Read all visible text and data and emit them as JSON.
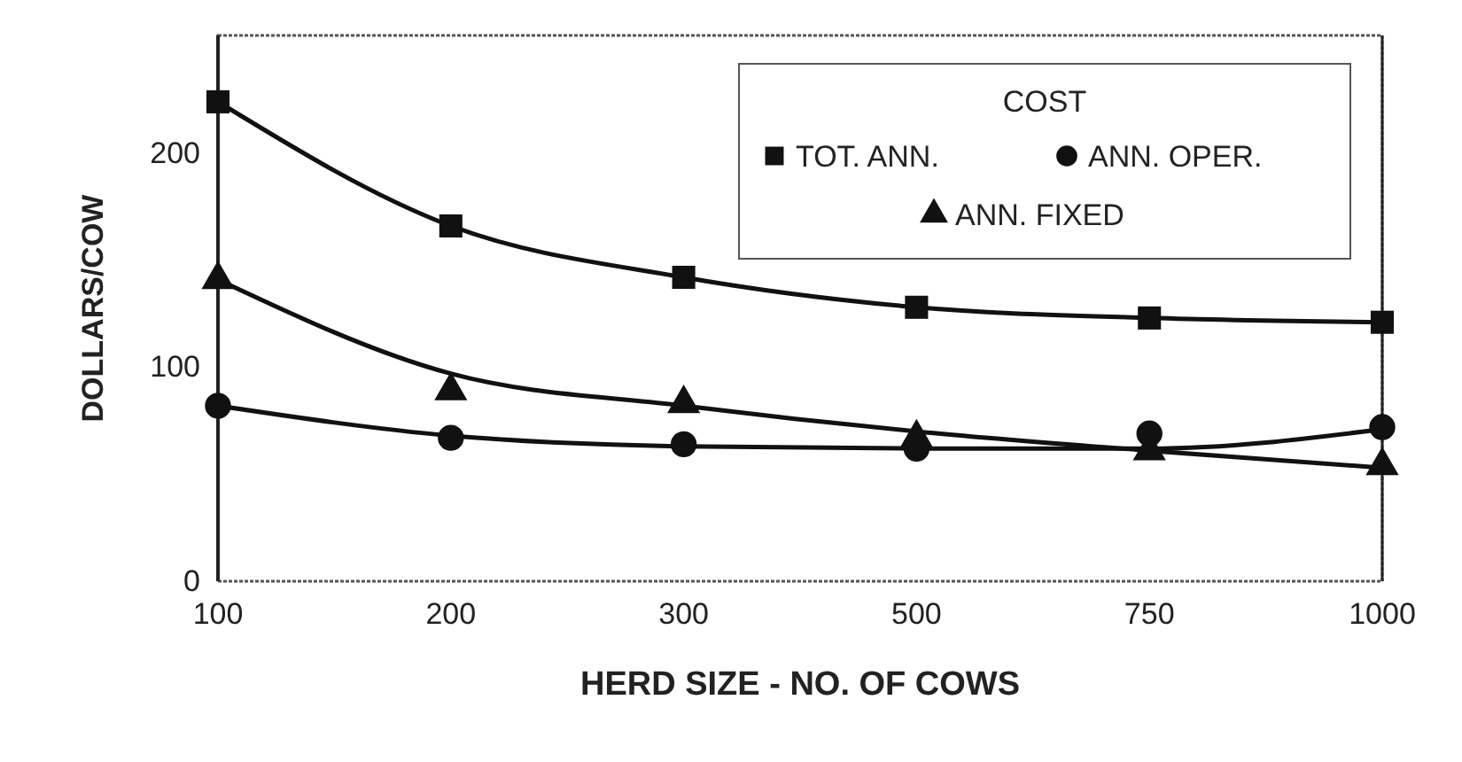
{
  "chart_data": {
    "type": "scatter",
    "xlabel": "HERD SIZE - NO. OF COWS",
    "ylabel": "DOLLARS/COW",
    "legend_title": "COST",
    "categories": [
      "100",
      "200",
      "300",
      "500",
      "750",
      "1000"
    ],
    "ylim": [
      0,
      255
    ],
    "yticks": [
      0,
      100,
      200
    ],
    "grid": false,
    "legend": "top right",
    "series": [
      {
        "name": "TOT. ANN.",
        "marker": "square",
        "color": "#111111",
        "values": [
          224,
          166,
          142,
          128,
          123,
          121
        ]
      },
      {
        "name": "ANN. OPER.",
        "marker": "circle",
        "color": "#111111",
        "values": [
          82,
          67,
          64,
          62,
          69,
          72
        ]
      },
      {
        "name": "ANN. FIXED",
        "marker": "triangle",
        "color": "#111111",
        "values": [
          141,
          89,
          83,
          67,
          61,
          54
        ]
      },
      {
        "type": "line",
        "marker": "none",
        "line_style": "solid",
        "color": "#111111",
        "values": [
          224,
          166,
          142,
          128,
          123,
          121
        ]
      },
      {
        "type": "line",
        "marker": "none",
        "line_style": "solid",
        "color": "#111111",
        "values": [
          82,
          68,
          63,
          62,
          62,
          71
        ]
      },
      {
        "type": "line",
        "marker": "none",
        "line_style": "solid",
        "color": "#111111",
        "values": [
          141,
          97,
          82,
          70,
          61,
          53
        ]
      }
    ]
  }
}
